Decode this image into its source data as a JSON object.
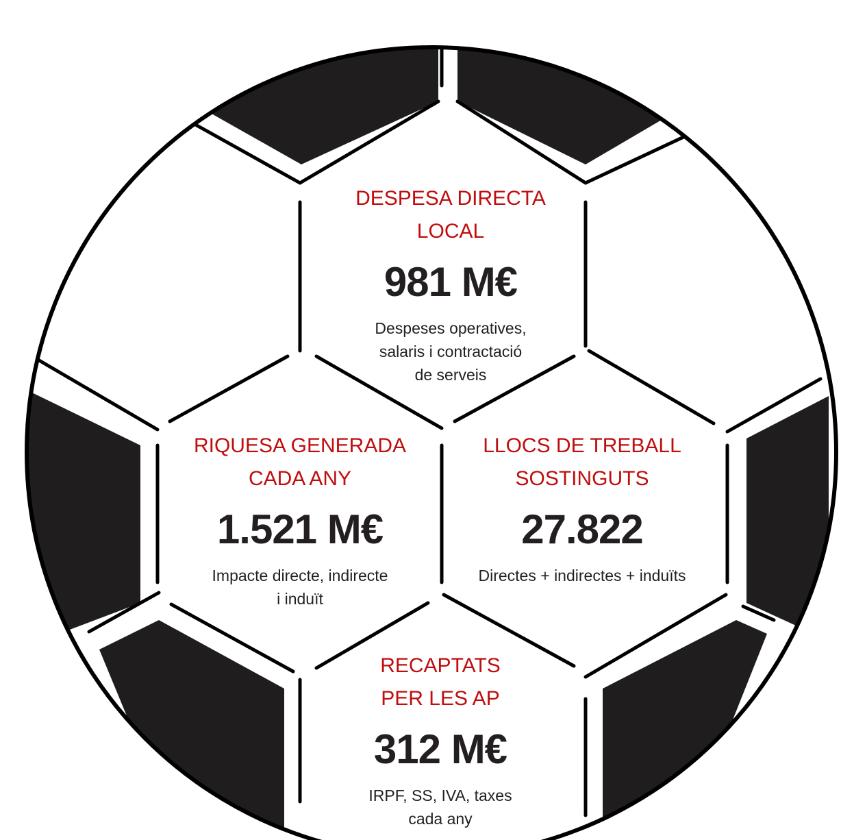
{
  "colors": {
    "title": "#c00d0d",
    "value": "#231f20",
    "panel": "#1f1d1e",
    "outline": "#000000",
    "background": "#ffffff"
  },
  "stats": {
    "despesa": {
      "title_line1": "DESPESA DIRECTA",
      "title_line2": "LOCAL",
      "value": "981 M€",
      "desc_line1": "Despeses operatives,",
      "desc_line2": "salaris i contractació",
      "desc_line3": "de serveis"
    },
    "riquesa": {
      "title_line1": "RIQUESA GENERADA",
      "title_line2": "CADA ANY",
      "value": "1.521 M€",
      "desc_line1": "Impacte directe, indirecte",
      "desc_line2": "i induït"
    },
    "llocs": {
      "title_line1": "LLOCS DE TREBALL",
      "title_line2": "SOSTINGUTS",
      "value": "27.822",
      "desc_line1": "Directes + indirectes + induïts"
    },
    "recaptats": {
      "title_line1": "RECAPTATS",
      "title_line2": "PER LES AP",
      "value": "312 M€",
      "desc_line1": "IRPF, SS, IVA, taxes",
      "desc_line2": "cada any"
    }
  }
}
